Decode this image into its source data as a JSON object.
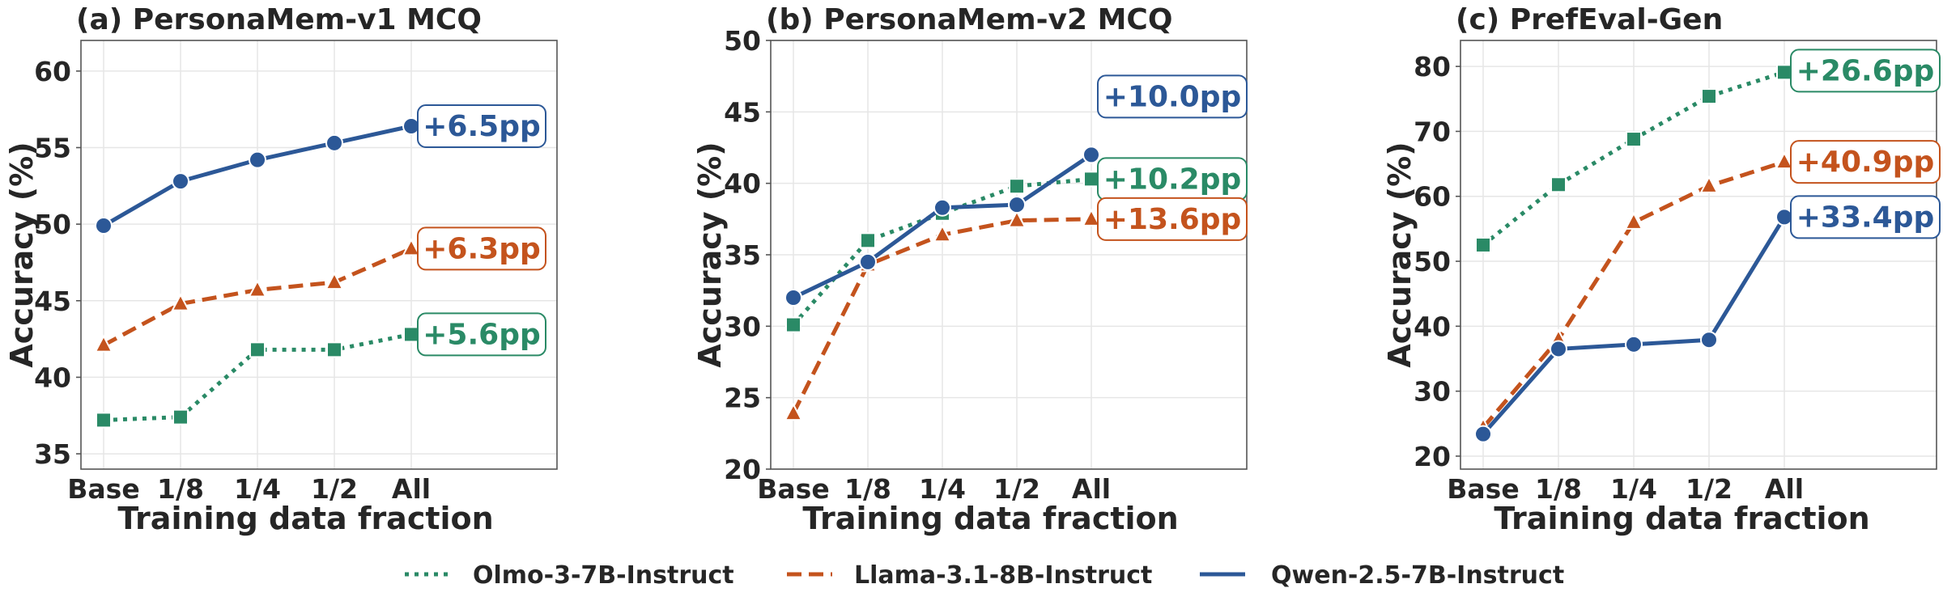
{
  "chart_data": [
    {
      "type": "line",
      "title": "(a) PersonaMem-v1 MCQ",
      "xlabel": "Training data fraction",
      "ylabel": "Accuracy (%)",
      "categories": [
        "Base",
        "1/8",
        "1/4",
        "1/2",
        "All"
      ],
      "ylim": [
        34,
        62
      ],
      "yticks": [
        35,
        40,
        45,
        50,
        55,
        60
      ],
      "grid": true,
      "series": [
        {
          "name": "Olmo-3-7B-Instruct",
          "values": [
            37.2,
            37.4,
            41.8,
            41.8,
            42.8
          ],
          "gain": "+5.6pp"
        },
        {
          "name": "Llama-3.1-8B-Instruct",
          "values": [
            42.1,
            44.8,
            45.7,
            46.2,
            48.4
          ],
          "gain": "+6.3pp"
        },
        {
          "name": "Qwen-2.5-7B-Instruct",
          "values": [
            49.9,
            52.8,
            54.2,
            55.3,
            56.4
          ],
          "gain": "+6.5pp"
        }
      ]
    },
    {
      "type": "line",
      "title": "(b) PersonaMem-v2 MCQ",
      "xlabel": "Training data fraction",
      "ylabel": "Accuracy (%)",
      "categories": [
        "Base",
        "1/8",
        "1/4",
        "1/2",
        "All"
      ],
      "ylim": [
        20,
        50
      ],
      "yticks": [
        20,
        25,
        30,
        35,
        40,
        45,
        50
      ],
      "grid": true,
      "series": [
        {
          "name": "Olmo-3-7B-Instruct",
          "values": [
            30.1,
            36.0,
            37.9,
            39.8,
            40.3
          ],
          "gain": "+10.2pp"
        },
        {
          "name": "Llama-3.1-8B-Instruct",
          "values": [
            23.9,
            34.3,
            36.4,
            37.4,
            37.5
          ],
          "gain": "+13.6pp"
        },
        {
          "name": "Qwen-2.5-7B-Instruct",
          "values": [
            32.0,
            34.5,
            38.3,
            38.5,
            42.0
          ],
          "gain": "+10.0pp"
        }
      ]
    },
    {
      "type": "line",
      "title": "(c) PrefEval-Gen",
      "xlabel": "Training data fraction",
      "ylabel": "Accuracy (%)",
      "categories": [
        "Base",
        "1/8",
        "1/4",
        "1/2",
        "All"
      ],
      "ylim": [
        18,
        84
      ],
      "yticks": [
        20,
        30,
        40,
        50,
        60,
        70,
        80
      ],
      "grid": true,
      "series": [
        {
          "name": "Olmo-3-7B-Instruct",
          "values": [
            52.5,
            61.8,
            68.8,
            75.4,
            79.1
          ],
          "gain": "+26.6pp"
        },
        {
          "name": "Llama-3.1-8B-Instruct",
          "values": [
            24.4,
            38.0,
            56.0,
            61.6,
            65.3
          ],
          "gain": "+40.9pp"
        },
        {
          "name": "Qwen-2.5-7B-Instruct",
          "values": [
            23.4,
            36.5,
            37.2,
            37.9,
            56.8
          ],
          "gain": "+33.4pp"
        }
      ]
    }
  ],
  "legend": {
    "placement": "bottom-center",
    "entries": [
      "Olmo-3-7B-Instruct",
      "Llama-3.1-8B-Instruct",
      "Qwen-2.5-7B-Instruct"
    ]
  },
  "colors": {
    "Olmo-3-7B-Instruct": "#2a8a66",
    "Llama-3.1-8B-Instruct": "#c4531d",
    "Qwen-2.5-7B-Instruct": "#2c5897",
    "grid": "#e6e6e6",
    "axis": "#555555",
    "text": "#262626"
  }
}
